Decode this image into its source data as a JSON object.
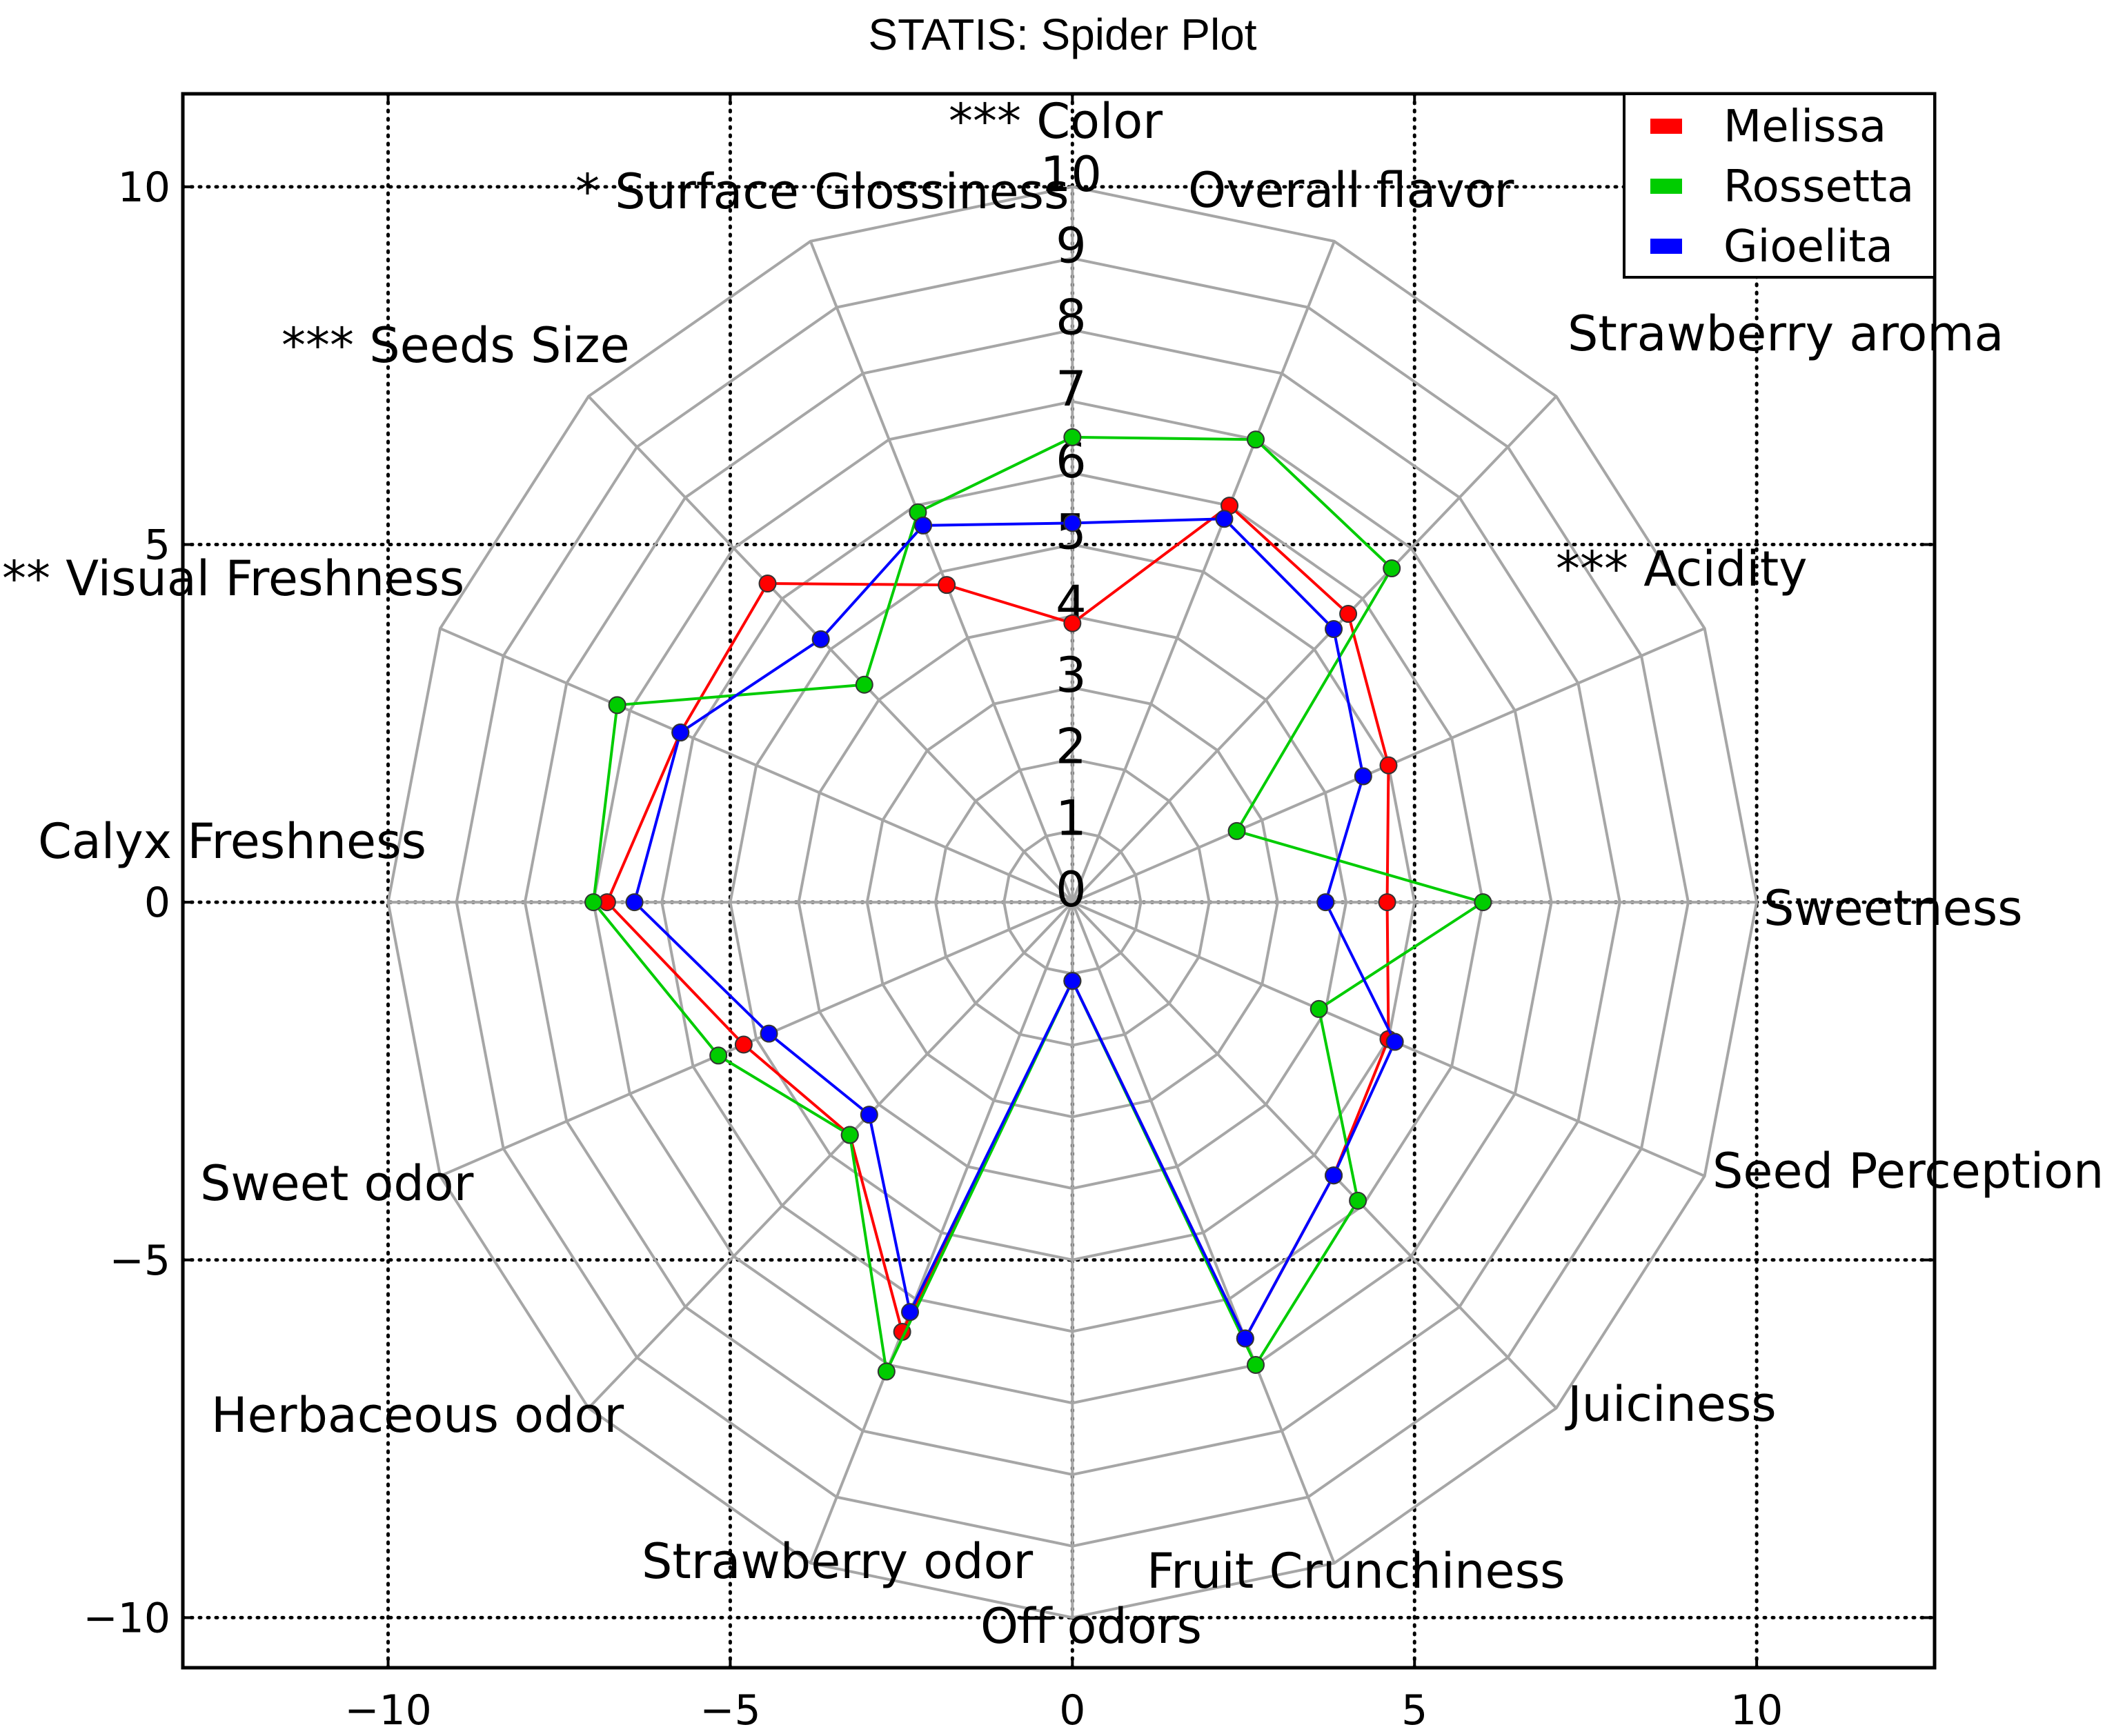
{
  "chart_data": {
    "type": "radar",
    "title": "STATIS: Spider Plot",
    "xlim": [
      -13,
      12.6
    ],
    "ylim": [
      -10.7,
      11.3
    ],
    "xticks": [
      -10,
      -5,
      0,
      5,
      10
    ],
    "yticks": [
      -10,
      -5,
      0,
      5,
      10
    ],
    "x_tick_labels": [
      "−10",
      "−5",
      "0",
      "5",
      "10"
    ],
    "y_tick_labels": [
      "−10",
      "−5",
      "0",
      "5",
      "10"
    ],
    "radial_max": 10,
    "radial_labels": [
      "0",
      "1",
      "2",
      "3",
      "4",
      "5",
      "6",
      "7",
      "8",
      "9",
      "10"
    ],
    "grid": true,
    "legend_position": "top-right",
    "categories": [
      "*** Color",
      "Overall flavor",
      "Strawberry aroma",
      "*** Acidity",
      "Sweetness",
      "Seed Perception",
      "Juiciness",
      "Fruit Crunchiness",
      "Off odors",
      "Strawberry odor",
      "Herbaceous odor",
      "Sweet odor",
      "Calyx Freshness",
      "** Visual Freshness",
      "*** Seeds Size",
      "* Surface Glossiness"
    ],
    "series": [
      {
        "name": "Melissa",
        "color": "#ff0000",
        "values": [
          3.9,
          6.0,
          5.7,
          5.0,
          4.6,
          5.0,
          5.4,
          6.6,
          1.1,
          6.5,
          4.6,
          5.2,
          6.8,
          6.2,
          6.3,
          4.8
        ]
      },
      {
        "name": "Rossetta",
        "color": "#00cc00",
        "values": [
          6.5,
          7.0,
          6.6,
          2.6,
          6.0,
          3.9,
          5.9,
          7.0,
          1.1,
          7.1,
          4.6,
          5.6,
          7.0,
          7.2,
          4.3,
          5.9
        ]
      },
      {
        "name": "Gioelita",
        "color": "#0000ff",
        "values": [
          5.3,
          5.8,
          5.4,
          4.6,
          3.7,
          5.1,
          5.4,
          6.6,
          1.1,
          6.2,
          4.2,
          4.8,
          6.4,
          6.2,
          5.2,
          5.7
        ]
      }
    ]
  }
}
